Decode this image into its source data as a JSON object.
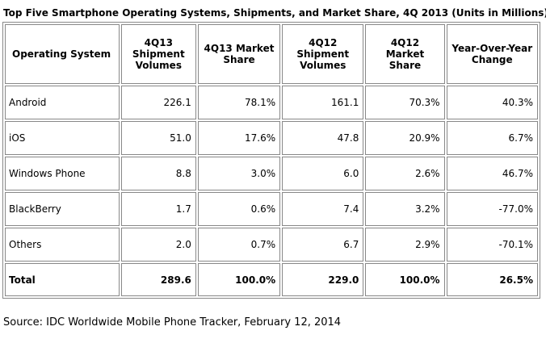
{
  "header": {
    "title": "Top Five Smartphone Operating Systems, Shipments, and Market Share, 4Q 2013 (Units in Millions)"
  },
  "table": {
    "columns": [
      "Operating System",
      "4Q13 Shipment Volumes",
      "4Q13 Market Share",
      "4Q12 Shipment Volumes",
      "4Q12 Market Share",
      "Year-Over-Year Change"
    ],
    "rows": [
      [
        "Android",
        "226.1",
        "78.1%",
        "161.1",
        "70.3%",
        "40.3%"
      ],
      [
        "iOS",
        "51.0",
        "17.6%",
        "47.8",
        "20.9%",
        "6.7%"
      ],
      [
        "Windows Phone",
        "8.8",
        "3.0%",
        "6.0",
        "2.6%",
        "46.7%"
      ],
      [
        "BlackBerry",
        "1.7",
        "0.6%",
        "7.4",
        "3.2%",
        "-77.0%"
      ],
      [
        "Others",
        "2.0",
        "0.7%",
        "6.7",
        "2.9%",
        "-70.1%"
      ]
    ],
    "total": [
      "Total",
      "289.6",
      "100.0%",
      "229.0",
      "100.0%",
      "26.5%"
    ]
  },
  "footer": {
    "source": "Source: IDC Worldwide Mobile Phone Tracker, February 12, 2014"
  }
}
